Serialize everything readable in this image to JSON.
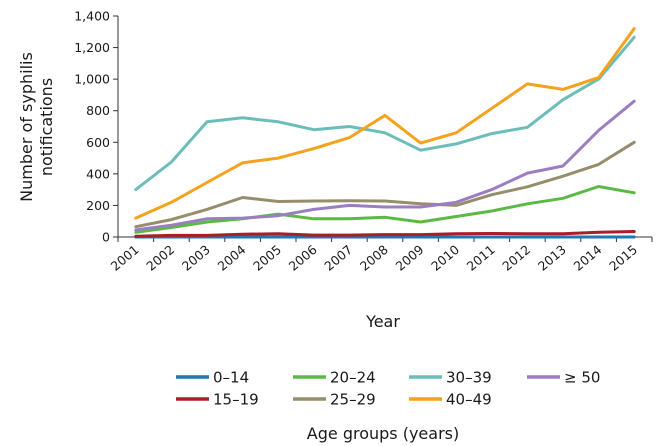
{
  "chart_data": {
    "type": "line",
    "title": "",
    "xlabel": "Year",
    "ylabel": "Number of syphilis notifications",
    "ylabel_lines": [
      "Number of syphilis",
      "notifications"
    ],
    "legend_title": "Age groups (years)",
    "legend_position": "bottom",
    "grid": false,
    "ylim": [
      0,
      1400
    ],
    "yticks": [
      0,
      200,
      400,
      600,
      800,
      1000,
      1200,
      1400
    ],
    "ytick_labels": [
      "0",
      "200",
      "400",
      "600",
      "800",
      "1,000",
      "1,200",
      "1,400"
    ],
    "x": [
      "2001",
      "2002",
      "2003",
      "2004",
      "2005",
      "2006",
      "2007",
      "2008",
      "2009",
      "2010",
      "2011",
      "2012",
      "2013",
      "2014",
      "2015"
    ],
    "series": [
      {
        "name": "0–14",
        "color": "#1f77b4",
        "values": [
          0,
          0,
          0,
          0,
          0,
          0,
          0,
          0,
          0,
          0,
          0,
          0,
          0,
          0,
          0
        ]
      },
      {
        "name": "20–24",
        "color": "#5db946",
        "values": [
          30,
          60,
          95,
          115,
          145,
          115,
          115,
          125,
          95,
          130,
          165,
          210,
          245,
          320,
          280
        ]
      },
      {
        "name": "30–39",
        "color": "#6cbdb9",
        "values": [
          300,
          475,
          730,
          755,
          730,
          680,
          700,
          660,
          550,
          590,
          655,
          695,
          870,
          1000,
          1265
        ]
      },
      {
        "name": "≥ 50",
        "color": "#9b7ec1",
        "values": [
          45,
          75,
          115,
          120,
          135,
          175,
          200,
          190,
          190,
          220,
          300,
          405,
          450,
          675,
          860
        ]
      },
      {
        "name": "15–19",
        "color": "#a81f25",
        "values": [
          5,
          10,
          10,
          18,
          20,
          12,
          12,
          15,
          15,
          20,
          22,
          20,
          20,
          30,
          35
        ]
      },
      {
        "name": "25–29",
        "color": "#968d6b",
        "values": [
          65,
          110,
          175,
          250,
          225,
          228,
          230,
          228,
          210,
          200,
          268,
          318,
          385,
          460,
          600
        ]
      },
      {
        "name": "40–49",
        "color": "#f5a21c",
        "values": [
          120,
          220,
          345,
          470,
          500,
          560,
          630,
          770,
          595,
          660,
          815,
          970,
          935,
          1010,
          1320
        ]
      }
    ]
  }
}
